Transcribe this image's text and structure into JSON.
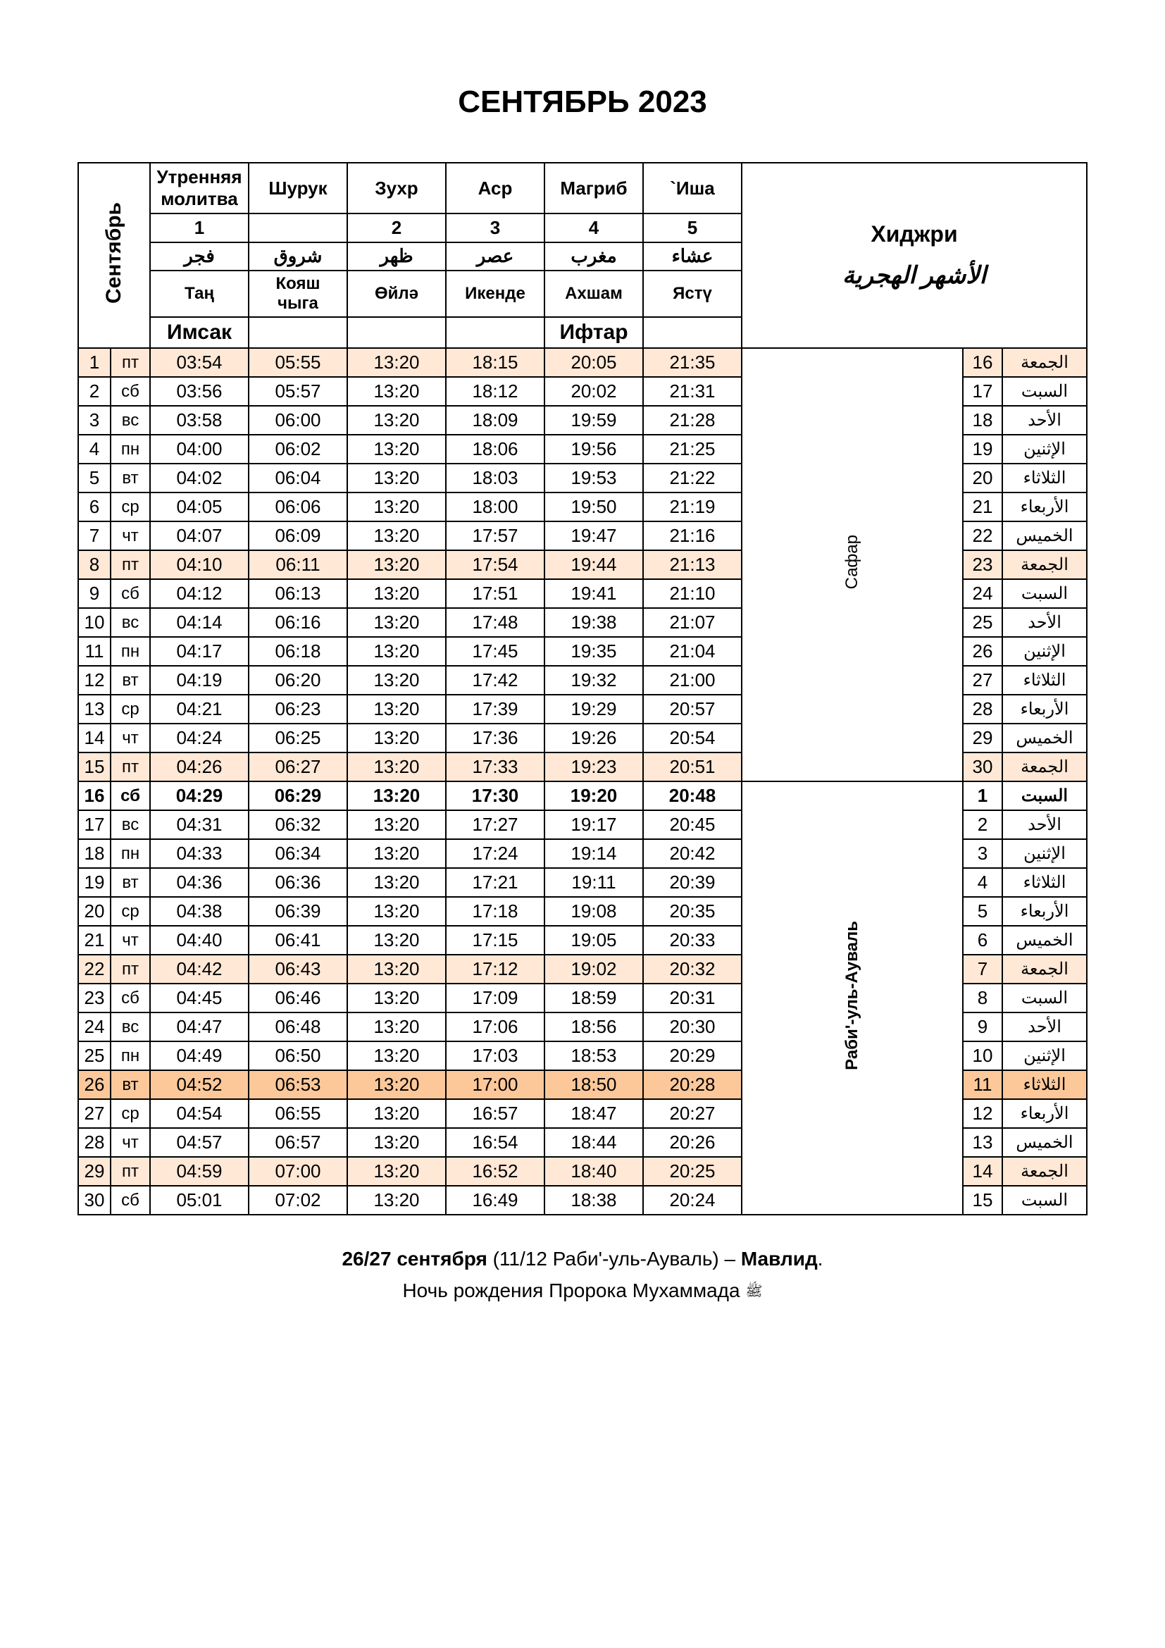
{
  "title": "СЕНТЯБРЬ 2023",
  "month_label_ru": "Сентябрь",
  "hijri_label": "Хиджри",
  "hijri_label_ar": "الأشهر الهجرية",
  "headers": {
    "ru": [
      "Утренняя молитва",
      "Шурук",
      "Зухр",
      "Аср",
      "Магриб",
      "`Иша"
    ],
    "nums": [
      "1",
      "",
      "2",
      "3",
      "4",
      "5"
    ],
    "ar": [
      "فجر",
      "شروق",
      "ظهر",
      "عصر",
      "مغرب",
      "عشاء"
    ],
    "tatar": [
      "Таң",
      "Кояш чыга",
      "Өйлә",
      "Икенде",
      "Ахшам",
      "Ястү"
    ],
    "imsak": "Имсак",
    "iftar": "Ифтар"
  },
  "hijri_months": [
    "Сафар",
    "Раби'-уль-Ауваль"
  ],
  "rows": [
    {
      "d": "1",
      "wk": "пт",
      "t": [
        "03:54",
        "05:55",
        "13:20",
        "18:15",
        "20:05",
        "21:35"
      ],
      "hd": "16",
      "har": "الجمعة",
      "friday": true,
      "m": 0,
      "mstart": true,
      "mrows": 15
    },
    {
      "d": "2",
      "wk": "сб",
      "t": [
        "03:56",
        "05:57",
        "13:20",
        "18:12",
        "20:02",
        "21:31"
      ],
      "hd": "17",
      "har": "السبت",
      "m": 0
    },
    {
      "d": "3",
      "wk": "вс",
      "t": [
        "03:58",
        "06:00",
        "13:20",
        "18:09",
        "19:59",
        "21:28"
      ],
      "hd": "18",
      "har": "الأحد",
      "m": 0
    },
    {
      "d": "4",
      "wk": "пн",
      "t": [
        "04:00",
        "06:02",
        "13:20",
        "18:06",
        "19:56",
        "21:25"
      ],
      "hd": "19",
      "har": "الإثنين",
      "m": 0
    },
    {
      "d": "5",
      "wk": "вт",
      "t": [
        "04:02",
        "06:04",
        "13:20",
        "18:03",
        "19:53",
        "21:22"
      ],
      "hd": "20",
      "har": "الثلاثاء",
      "m": 0
    },
    {
      "d": "6",
      "wk": "ср",
      "t": [
        "04:05",
        "06:06",
        "13:20",
        "18:00",
        "19:50",
        "21:19"
      ],
      "hd": "21",
      "har": "الأربعاء",
      "m": 0
    },
    {
      "d": "7",
      "wk": "чт",
      "t": [
        "04:07",
        "06:09",
        "13:20",
        "17:57",
        "19:47",
        "21:16"
      ],
      "hd": "22",
      "har": "الخميس",
      "m": 0
    },
    {
      "d": "8",
      "wk": "пт",
      "t": [
        "04:10",
        "06:11",
        "13:20",
        "17:54",
        "19:44",
        "21:13"
      ],
      "hd": "23",
      "har": "الجمعة",
      "friday": true,
      "m": 0
    },
    {
      "d": "9",
      "wk": "сб",
      "t": [
        "04:12",
        "06:13",
        "13:20",
        "17:51",
        "19:41",
        "21:10"
      ],
      "hd": "24",
      "har": "السبت",
      "m": 0
    },
    {
      "d": "10",
      "wk": "вс",
      "t": [
        "04:14",
        "06:16",
        "13:20",
        "17:48",
        "19:38",
        "21:07"
      ],
      "hd": "25",
      "har": "الأحد",
      "m": 0
    },
    {
      "d": "11",
      "wk": "пн",
      "t": [
        "04:17",
        "06:18",
        "13:20",
        "17:45",
        "19:35",
        "21:04"
      ],
      "hd": "26",
      "har": "الإثنين",
      "m": 0
    },
    {
      "d": "12",
      "wk": "вт",
      "t": [
        "04:19",
        "06:20",
        "13:20",
        "17:42",
        "19:32",
        "21:00"
      ],
      "hd": "27",
      "har": "الثلاثاء",
      "m": 0
    },
    {
      "d": "13",
      "wk": "ср",
      "t": [
        "04:21",
        "06:23",
        "13:20",
        "17:39",
        "19:29",
        "20:57"
      ],
      "hd": "28",
      "har": "الأربعاء",
      "m": 0
    },
    {
      "d": "14",
      "wk": "чт",
      "t": [
        "04:24",
        "06:25",
        "13:20",
        "17:36",
        "19:26",
        "20:54"
      ],
      "hd": "29",
      "har": "الخميس",
      "m": 0
    },
    {
      "d": "15",
      "wk": "пт",
      "t": [
        "04:26",
        "06:27",
        "13:20",
        "17:33",
        "19:23",
        "20:51"
      ],
      "hd": "30",
      "har": "الجمعة",
      "friday": true,
      "m": 0
    },
    {
      "d": "16",
      "wk": "сб",
      "t": [
        "04:29",
        "06:29",
        "13:20",
        "17:30",
        "19:20",
        "20:48"
      ],
      "hd": "1",
      "har": "السبت",
      "bold": true,
      "m": 1,
      "mstart": true,
      "mrows": 15
    },
    {
      "d": "17",
      "wk": "вс",
      "t": [
        "04:31",
        "06:32",
        "13:20",
        "17:27",
        "19:17",
        "20:45"
      ],
      "hd": "2",
      "har": "الأحد",
      "m": 1
    },
    {
      "d": "18",
      "wk": "пн",
      "t": [
        "04:33",
        "06:34",
        "13:20",
        "17:24",
        "19:14",
        "20:42"
      ],
      "hd": "3",
      "har": "الإثنين",
      "m": 1
    },
    {
      "d": "19",
      "wk": "вт",
      "t": [
        "04:36",
        "06:36",
        "13:20",
        "17:21",
        "19:11",
        "20:39"
      ],
      "hd": "4",
      "har": "الثلاثاء",
      "m": 1
    },
    {
      "d": "20",
      "wk": "ср",
      "t": [
        "04:38",
        "06:39",
        "13:20",
        "17:18",
        "19:08",
        "20:35"
      ],
      "hd": "5",
      "har": "الأربعاء",
      "m": 1
    },
    {
      "d": "21",
      "wk": "чт",
      "t": [
        "04:40",
        "06:41",
        "13:20",
        "17:15",
        "19:05",
        "20:33"
      ],
      "hd": "6",
      "har": "الخميس",
      "m": 1
    },
    {
      "d": "22",
      "wk": "пт",
      "t": [
        "04:42",
        "06:43",
        "13:20",
        "17:12",
        "19:02",
        "20:32"
      ],
      "hd": "7",
      "har": "الجمعة",
      "friday": true,
      "m": 1
    },
    {
      "d": "23",
      "wk": "сб",
      "t": [
        "04:45",
        "06:46",
        "13:20",
        "17:09",
        "18:59",
        "20:31"
      ],
      "hd": "8",
      "har": "السبت",
      "m": 1
    },
    {
      "d": "24",
      "wk": "вс",
      "t": [
        "04:47",
        "06:48",
        "13:20",
        "17:06",
        "18:56",
        "20:30"
      ],
      "hd": "9",
      "har": "الأحد",
      "m": 1
    },
    {
      "d": "25",
      "wk": "пн",
      "t": [
        "04:49",
        "06:50",
        "13:20",
        "17:03",
        "18:53",
        "20:29"
      ],
      "hd": "10",
      "har": "الإثنين",
      "m": 1
    },
    {
      "d": "26",
      "wk": "вт",
      "t": [
        "04:52",
        "06:53",
        "13:20",
        "17:00",
        "18:50",
        "20:28"
      ],
      "hd": "11",
      "har": "الثلاثاء",
      "highlight": true,
      "m": 1
    },
    {
      "d": "27",
      "wk": "ср",
      "t": [
        "04:54",
        "06:55",
        "13:20",
        "16:57",
        "18:47",
        "20:27"
      ],
      "hd": "12",
      "har": "الأربعاء",
      "m": 1
    },
    {
      "d": "28",
      "wk": "чт",
      "t": [
        "04:57",
        "06:57",
        "13:20",
        "16:54",
        "18:44",
        "20:26"
      ],
      "hd": "13",
      "har": "الخميس",
      "m": 1
    },
    {
      "d": "29",
      "wk": "пт",
      "t": [
        "04:59",
        "07:00",
        "13:20",
        "16:52",
        "18:40",
        "20:25"
      ],
      "hd": "14",
      "har": "الجمعة",
      "friday": true,
      "m": 1
    },
    {
      "d": "30",
      "wk": "сб",
      "t": [
        "05:01",
        "07:02",
        "13:20",
        "16:49",
        "18:38",
        "20:24"
      ],
      "hd": "15",
      "har": "السبت",
      "m": 1
    }
  ],
  "footer": {
    "line1_bold1": "26/27 сентября",
    "line1_mid": " (11/12 Раби'-уль-Ауваль) – ",
    "line1_bold2": "Мавлид",
    "line1_end": ".",
    "line2": "Ночь рождения Пророка Мухаммада ",
    "saw": "ﷺ"
  },
  "colors": {
    "friday_bg": "#ffe8d6",
    "highlight_bg": "#fcc89a"
  }
}
